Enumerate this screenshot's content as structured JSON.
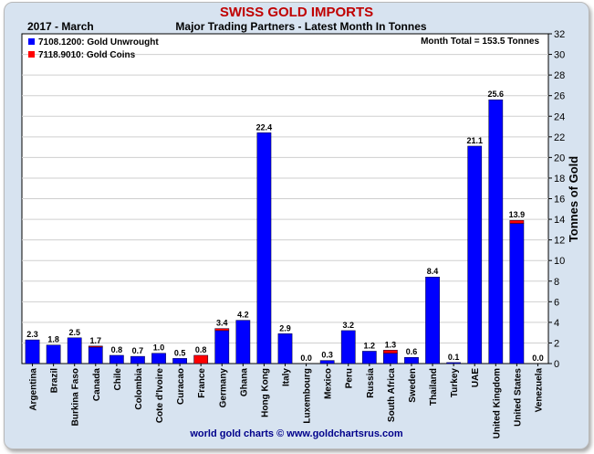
{
  "chart_data": {
    "type": "bar",
    "title": "SWISS GOLD IMPORTS",
    "subtitle": "Major Trading Partners - Latest Month In Tonnes",
    "period": "2017 - March",
    "month_total": "Month Total = 153.5 Tonnes",
    "ylabel": "Tonnes of Gold",
    "ylim": [
      0,
      32
    ],
    "yticks": [
      0,
      2,
      4,
      6,
      8,
      10,
      12,
      14,
      16,
      18,
      20,
      22,
      24,
      26,
      28,
      30,
      32
    ],
    "grid": true,
    "stacked": true,
    "legend_position": "top-left",
    "categories": [
      "Argentina",
      "Brazil",
      "Burkina Faso",
      "Canada",
      "Chile",
      "Colombia",
      "Cote d'Ivoire",
      "Curacao",
      "France",
      "Germany",
      "Ghana",
      "Hong Kong",
      "Italy",
      "Luxembourg",
      "Mexico",
      "Peru",
      "Russia",
      "South Africa",
      "Sweden",
      "Thailand",
      "Turkey",
      "UAE",
      "United Kingdom",
      "United States",
      "Venezuela"
    ],
    "series": [
      {
        "name": "7108.1200: Gold Unwrought",
        "color": "#0000ff",
        "values": [
          2.3,
          1.8,
          2.5,
          1.6,
          0.8,
          0.7,
          1.0,
          0.5,
          0.0,
          3.2,
          4.2,
          22.4,
          2.9,
          0.0,
          0.3,
          3.2,
          1.2,
          1.0,
          0.6,
          8.4,
          0.1,
          21.1,
          25.6,
          13.6,
          0.0
        ]
      },
      {
        "name": "7118.9010: Gold Coins",
        "color": "#ff0000",
        "values": [
          0.0,
          0.0,
          0.0,
          0.1,
          0.0,
          0.0,
          0.0,
          0.0,
          0.8,
          0.2,
          0.0,
          0.0,
          0.0,
          0.0,
          0.0,
          0.0,
          0.0,
          0.3,
          0.0,
          0.0,
          0.0,
          0.0,
          0.0,
          0.3,
          0.0
        ]
      }
    ],
    "data_labels": [
      "2.3",
      "1.8",
      "2.5",
      "1.7",
      "0.8",
      "0.7",
      "1.0",
      "0.5",
      "0.8",
      "3.4",
      "4.2",
      "22.4",
      "2.9",
      "0.0",
      "0.3",
      "3.2",
      "1.2",
      "1.3",
      "0.6",
      "8.4",
      "0.1",
      "21.1",
      "25.6",
      "13.9",
      "0.0"
    ],
    "source": "world gold charts © www.goldchartsrus.com"
  }
}
